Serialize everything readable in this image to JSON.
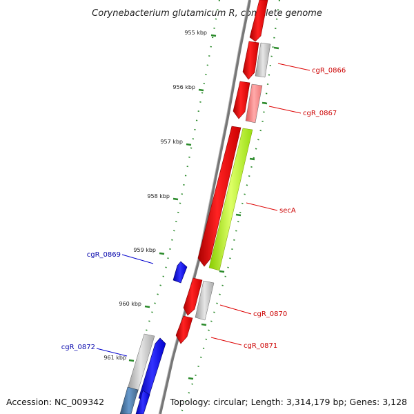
{
  "title": "Corynebacterium glutamicum R, complete genome",
  "accession": "Accession: NC_009342",
  "topology": "Topology: circular; Length: 3,314,179 bp; Genes: 3,128",
  "ticks": [
    "955 kbp",
    "956 kbp",
    "957 kbp",
    "958 kbp",
    "959 kbp",
    "960 kbp",
    "961 kbp"
  ],
  "genes": {
    "cgR_0866": "cgR_0866",
    "cgR_0867": "cgR_0867",
    "secA": "secA",
    "cgR_0869": "cgR_0869",
    "cgR_0870": "cgR_0870",
    "cgR_0871": "cgR_0871",
    "cgR_0872": "cgR_0872"
  },
  "colors": {
    "forward_strand": "#ee1111",
    "reverse_strand": "#0000ee",
    "coding_gray": "#bbbbbb",
    "coding_pink": "#ee7777",
    "coding_green": "#aaee22",
    "coding_steel": "#4477aa",
    "backbone": "#888888",
    "tick": "#2a8a2a",
    "label_forward": "#cc0000",
    "label_reverse": "#0000aa"
  }
}
